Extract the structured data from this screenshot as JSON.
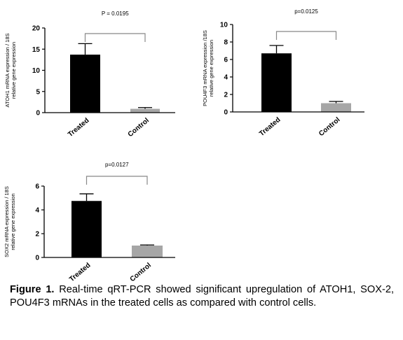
{
  "chart_data": [
    {
      "type": "bar",
      "p_value": "P = 0.0195",
      "ylabel_line1": "ATOH1 mRNA expression / 18S",
      "ylabel_line2": "relative gene expression",
      "categories": [
        "Treated",
        "Control"
      ],
      "values": [
        13.7,
        0.9
      ],
      "errors": [
        2.6,
        0.3
      ],
      "colors": [
        "#000000",
        "#a6a6a6"
      ],
      "ylim": [
        0,
        20
      ],
      "yticks": [
        0,
        5,
        10,
        15,
        20
      ]
    },
    {
      "type": "bar",
      "p_value": "p=0.0125",
      "ylabel_line1": "POU4F3 mRNA expression /18S",
      "ylabel_line2": "relative gene expression",
      "categories": [
        "Treated",
        "Control"
      ],
      "values": [
        6.7,
        1.0
      ],
      "errors": [
        0.9,
        0.2
      ],
      "colors": [
        "#000000",
        "#a6a6a6"
      ],
      "ylim": [
        0,
        10
      ],
      "yticks": [
        0,
        2,
        4,
        6,
        8,
        10
      ]
    },
    {
      "type": "bar",
      "p_value": "p=0.0127",
      "ylabel_line1": "SOX2 mRNA expression / 18S",
      "ylabel_line2": "relative gene expression",
      "categories": [
        "Treated",
        "Control"
      ],
      "values": [
        4.75,
        1.0
      ],
      "errors": [
        0.6,
        0.05
      ],
      "colors": [
        "#000000",
        "#a6a6a6"
      ],
      "ylim": [
        0,
        6
      ],
      "yticks": [
        0,
        2,
        4,
        6
      ]
    }
  ],
  "caption": {
    "label": "Figure 1.",
    "text": "Real-time qRT-PCR showed significant upregulation of ATOH1, SOX-2, POU4F3 mRNAs in the treated cells as compared with control cells."
  }
}
